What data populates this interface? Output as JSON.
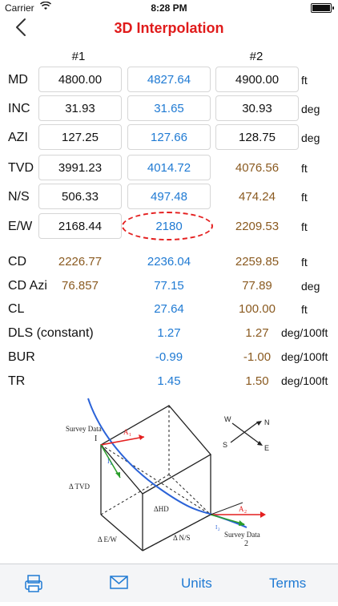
{
  "status": {
    "carrier": "Carrier",
    "time": "8:28 PM"
  },
  "nav": {
    "title": "3D Interpolation"
  },
  "columns": {
    "first": "#1",
    "second": "#2"
  },
  "input_rows": [
    {
      "label": "MD",
      "v1": "4800.00",
      "vi": "4827.64",
      "v2": "4900.00",
      "unit": "ft"
    },
    {
      "label": "INC",
      "v1": "31.93",
      "vi": "31.65",
      "v2": "30.93",
      "unit": "deg"
    },
    {
      "label": "AZI",
      "v1": "127.25",
      "vi": "127.66",
      "v2": "128.75",
      "unit": "deg"
    },
    {
      "label": "TVD",
      "v1": "3991.23",
      "vi": "4014.72",
      "v2": "4076.56",
      "unit": "ft"
    },
    {
      "label": "N/S",
      "v1": "506.33",
      "vi": "497.48",
      "v2": "474.24",
      "unit": "ft"
    },
    {
      "label": "E/W",
      "v1": "2168.44",
      "vi": "2180",
      "v2": "2209.53",
      "unit": "ft"
    }
  ],
  "result_rows": [
    {
      "label": "CD",
      "v1": "2226.77",
      "vi": "2236.04",
      "v2": "2259.85",
      "unit": "ft"
    },
    {
      "label": "CD Azi",
      "v1": "76.857",
      "vi": "77.15",
      "v2": "77.89",
      "unit": "deg"
    },
    {
      "label": "CL",
      "v1": "",
      "vi": "27.64",
      "v2": "100.00",
      "unit": "ft"
    },
    {
      "label": "DLS (constant)",
      "v1": "",
      "vi": "1.27",
      "v2": "1.27",
      "unit": "deg/100ft"
    },
    {
      "label": "BUR",
      "v1": "",
      "vi": "-0.99",
      "v2": "-1.00",
      "unit": "deg/100ft"
    },
    {
      "label": "TR",
      "v1": "",
      "vi": "1.45",
      "v2": "1.50",
      "unit": "deg/100ft"
    }
  ],
  "diagram": {
    "survey1": "Survey Data",
    "one": "I",
    "a1": "A",
    "a1_sub": "1",
    "i1": "I",
    "i1_sub": "1",
    "dtvd": "Δ TVD",
    "dhd": "ΔHD",
    "dew": "Δ E/W",
    "dns": "Δ N/S",
    "a2": "A",
    "a2_sub": "2",
    "i2": "I",
    "i2_sub": "2",
    "survey2": "Survey Data",
    "two": "2",
    "compass": {
      "w": "W",
      "n": "N",
      "s": "S",
      "e": "E"
    }
  },
  "tabs": {
    "units": "Units",
    "terms": "Terms"
  },
  "colors": {
    "title": "#e01b1b",
    "interp": "#1f7ad3",
    "second": "#8a5a20",
    "accent": "#1f7ad3"
  }
}
